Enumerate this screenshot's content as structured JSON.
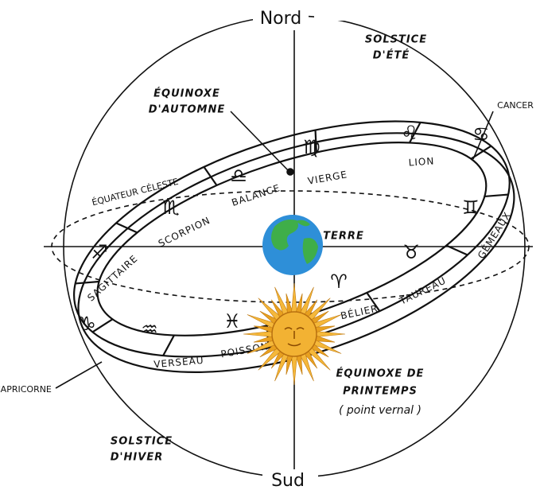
{
  "labels": {
    "north": "Nord",
    "south": "Sud",
    "summer_solstice": [
      "SOLSTICE",
      "D'ÉTÉ"
    ],
    "autumn_equinox": [
      "ÉQUINOXE",
      "D'AUTOMNE"
    ],
    "cancer": "CANCER",
    "celestial_equator": "ÉQUATEUR CÉLESTE",
    "earth": "TERRE",
    "spring_equinox": [
      "ÉQUINOXE DE",
      "PRINTEMPS",
      "( point vernal )"
    ],
    "winter_solstice": [
      "SOLSTICE",
      "D'HIVER"
    ],
    "capricorn": "CAPRICORNE"
  },
  "zodiac": [
    {
      "name": "VIERGE",
      "symbol": "♍"
    },
    {
      "name": "LION",
      "symbol": "♌"
    },
    {
      "name": "BALANCE",
      "symbol": "♎"
    },
    {
      "name": "SCORPION",
      "symbol": "♏"
    },
    {
      "name": "SAGITTAIRE",
      "symbol": "♐"
    },
    {
      "name": "VERSEAU",
      "symbol": "♒"
    },
    {
      "name": "POISSONS",
      "symbol": "♓"
    },
    {
      "name": "BÉLIER",
      "symbol": "♈"
    },
    {
      "name": "TAUREAU",
      "symbol": "♉"
    },
    {
      "name": "GÉMEAUX",
      "symbol": "♊"
    },
    {
      "name": "CANCER",
      "symbol": "♋"
    },
    {
      "name": "CAPRICORNE",
      "symbol": "♑"
    }
  ]
}
